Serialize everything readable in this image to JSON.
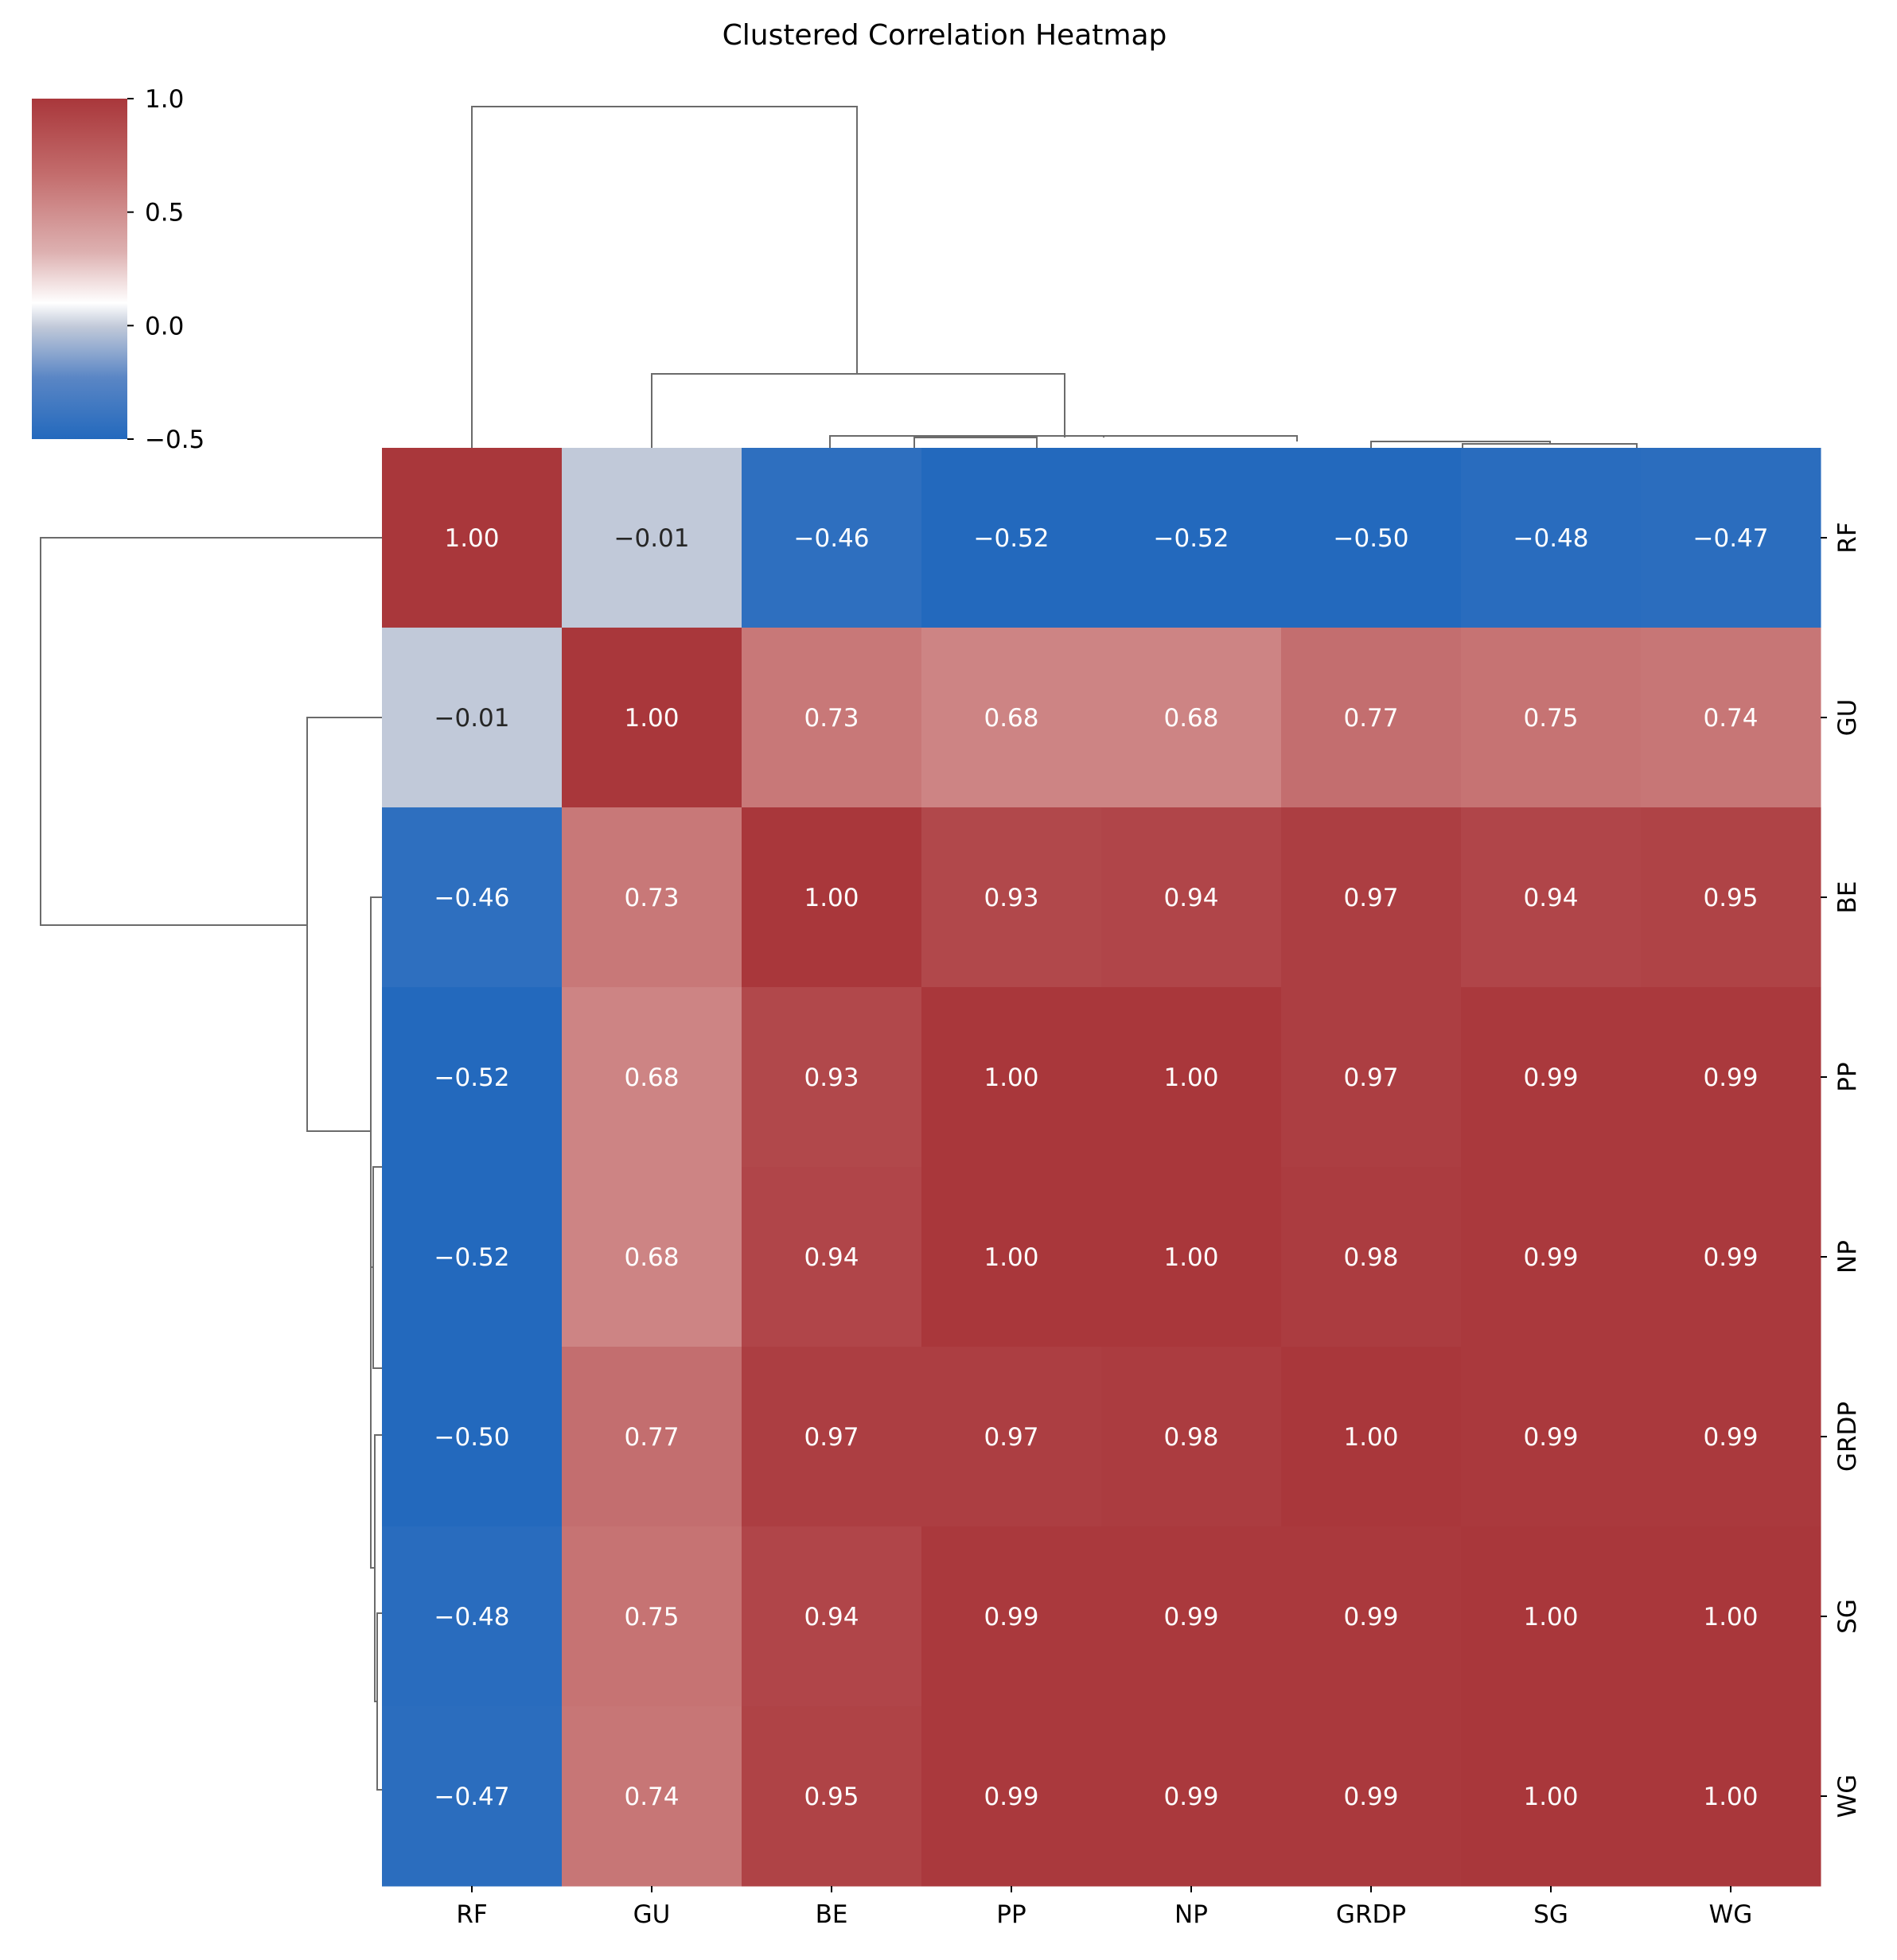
{
  "chart_data": {
    "type": "heatmap",
    "title": "Clustered Correlation Heatmap",
    "row_labels": [
      "RF",
      "GU",
      "BE",
      "PP",
      "NP",
      "GRDP",
      "SG",
      "WG"
    ],
    "col_labels": [
      "RF",
      "GU",
      "BE",
      "PP",
      "NP",
      "GRDP",
      "SG",
      "WG"
    ],
    "values": [
      [
        1.0,
        -0.01,
        -0.46,
        -0.52,
        -0.52,
        -0.5,
        -0.48,
        -0.47
      ],
      [
        -0.01,
        1.0,
        0.73,
        0.68,
        0.68,
        0.77,
        0.75,
        0.74
      ],
      [
        -0.46,
        0.73,
        1.0,
        0.93,
        0.94,
        0.97,
        0.94,
        0.95
      ],
      [
        -0.52,
        0.68,
        0.93,
        1.0,
        1.0,
        0.97,
        0.99,
        0.99
      ],
      [
        -0.52,
        0.68,
        0.94,
        1.0,
        1.0,
        0.98,
        0.99,
        0.99
      ],
      [
        -0.5,
        0.77,
        0.97,
        0.97,
        0.98,
        1.0,
        0.99,
        0.99
      ],
      [
        -0.48,
        0.75,
        0.94,
        0.99,
        0.99,
        0.99,
        1.0,
        1.0
      ],
      [
        -0.47,
        0.74,
        0.95,
        0.99,
        0.99,
        0.99,
        1.0,
        1.0
      ]
    ],
    "value_labels": [
      [
        "1.00",
        "−0.01",
        "−0.46",
        "−0.52",
        "−0.52",
        "−0.50",
        "−0.48",
        "−0.47"
      ],
      [
        "−0.01",
        "1.00",
        "0.73",
        "0.68",
        "0.68",
        "0.77",
        "0.75",
        "0.74"
      ],
      [
        "−0.46",
        "0.73",
        "1.00",
        "0.93",
        "0.94",
        "0.97",
        "0.94",
        "0.95"
      ],
      [
        "−0.52",
        "0.68",
        "0.93",
        "1.00",
        "1.00",
        "0.97",
        "0.99",
        "0.99"
      ],
      [
        "−0.52",
        "0.68",
        "0.94",
        "1.00",
        "1.00",
        "0.98",
        "0.99",
        "0.99"
      ],
      [
        "−0.50",
        "0.77",
        "0.97",
        "0.97",
        "0.98",
        "1.00",
        "0.99",
        "0.99"
      ],
      [
        "−0.48",
        "0.75",
        "0.94",
        "0.99",
        "0.99",
        "0.99",
        "1.00",
        "1.00"
      ],
      [
        "−0.47",
        "0.74",
        "0.95",
        "0.99",
        "0.99",
        "0.99",
        "1.00",
        "1.00"
      ]
    ],
    "colorbar": {
      "range": [
        -0.5,
        1.0
      ],
      "ticks": [
        1.0,
        0.5,
        0.0,
        -0.5
      ],
      "tick_labels": [
        "1.0",
        "0.5",
        "0.0",
        "−0.5"
      ],
      "colormap": "vlag",
      "low_color": "#2369bd",
      "mid_color": "#ffffff",
      "high_color": "#a9373b",
      "placement": "top-left"
    },
    "dendrogram": {
      "merge_order": [
        [
          "PP",
          "NP"
        ],
        [
          "SG",
          "WG"
        ],
        [
          "GRDP",
          "SG+WG"
        ],
        [
          "PP+NP",
          "GRDP+SG+WG"
        ],
        [
          "BE",
          "PP+NP+GRDP+SG+WG"
        ],
        [
          "GU",
          "BE+PP+NP+GRDP+SG+WG"
        ],
        [
          "RF",
          "GU+BE+PP+NP+GRDP+SG+WG"
        ]
      ]
    },
    "grid": false
  }
}
